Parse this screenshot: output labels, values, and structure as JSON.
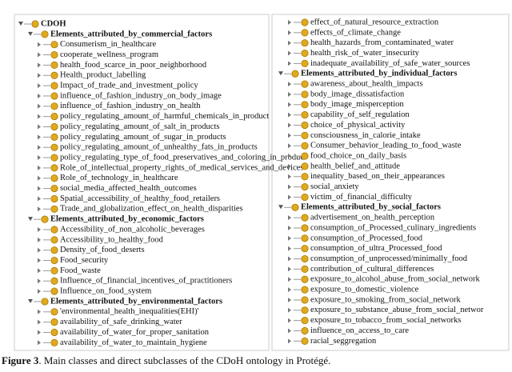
{
  "tree": {
    "root": "CDOH",
    "groups": [
      {
        "label": "Elements_attributed_by_commercial_factors",
        "children": [
          "Consumerism_in_healthcare",
          "cooperate_wellness_program",
          "health_food_scarce_in_poor_neighborhood",
          "Health_product_labelling",
          "Impact_of_trade_and_investment_policy",
          "influence_of_fashion_industry_on_body_image",
          "influence_of_fashion_industry_on_health",
          "policy_regulating_amount_of_harmful_chemicals_in_product",
          "policy_regulating_amount_of_salt_in_products",
          "policy_regulating_amount_of_sugar_in_products",
          "policy_regulating_amount_of_unhealthy_fats_in_products",
          "policy_regulating_type_of_food_preservatives_and_coloring_in_produc",
          "Role_of_intellectual_property_rights_of_medical_services_and_devices",
          "Role_of_technology_in_healthcare",
          "social_media_affected_health_outcomes",
          "Spatial_accessibility_of_healthy_food_retailers",
          "Trade_and_globalization_effect_on_health_disparities"
        ]
      },
      {
        "label": "Elements_attributed_by_economic_factors",
        "children": [
          "Accessibility_of_non_alcoholic_beverages",
          "Accessibility_to_healthy_food",
          "Density_of_food_deserts",
          "Food_security",
          "Food_waste",
          "Influence_of_financial_incentives_of_practitioners",
          "Influence_on_food_system"
        ]
      },
      {
        "label": "Elements_attributed_by_environmental_factors",
        "children": [
          "'environmental_health_inequalities(EHI)'",
          "availability_of_safe_drinking_water",
          "availability_of_water_for_proper_sanitation",
          "availability_of_water_to_maintain_hygiene",
          "effect_of_natural_resource_extraction",
          "effects_of_climate_change",
          "health_hazards_from_contaminated_water",
          "health_risk_of_water_insecurity",
          "inadequate_availability_of_safe_water_sources"
        ]
      },
      {
        "label": "Elements_attributed_by_individual_factors",
        "children": [
          "awareness_about_health_impacts",
          "body_image_dissatisfaction",
          "body_image_misperception",
          "capability_of_self_regulation",
          "choice_of_physical_activity",
          "consciousness_in_calorie_intake",
          "Consumer_behavior_leading_to_food_waste",
          "food_choice_on_daily_basis",
          "health_belief_and_attitude",
          "inequality_based_on_their_appearances",
          "social_anxiety",
          "victim_of_financial_difficulty"
        ]
      },
      {
        "label": "Elements_attributed_by_social_factors",
        "children": [
          "advertisement_on_health_perception",
          "consumption_of_Processed_culinary_ingredients",
          "consumption_of_Processed_food",
          "consumption_of_ultra_Processed_food",
          "consumption_of_unprocessed/minimally_food",
          "contribution_of_cultural_differences",
          "exposure_to_alcohol_abuse_from_social_network",
          "exposure_to_domestic_violence",
          "exposure_to_smoking_from_social_network",
          "exposure_to_substance_abuse_from_social_networ",
          "exposure_to_tobacco_from_social_networks",
          "influence_on_access_to_care",
          "racial_seggregation"
        ]
      }
    ]
  },
  "caption": {
    "label": "Figure 3",
    "text": ". Main classes and direct subclasses of the CDoH ontology in Protégé."
  }
}
